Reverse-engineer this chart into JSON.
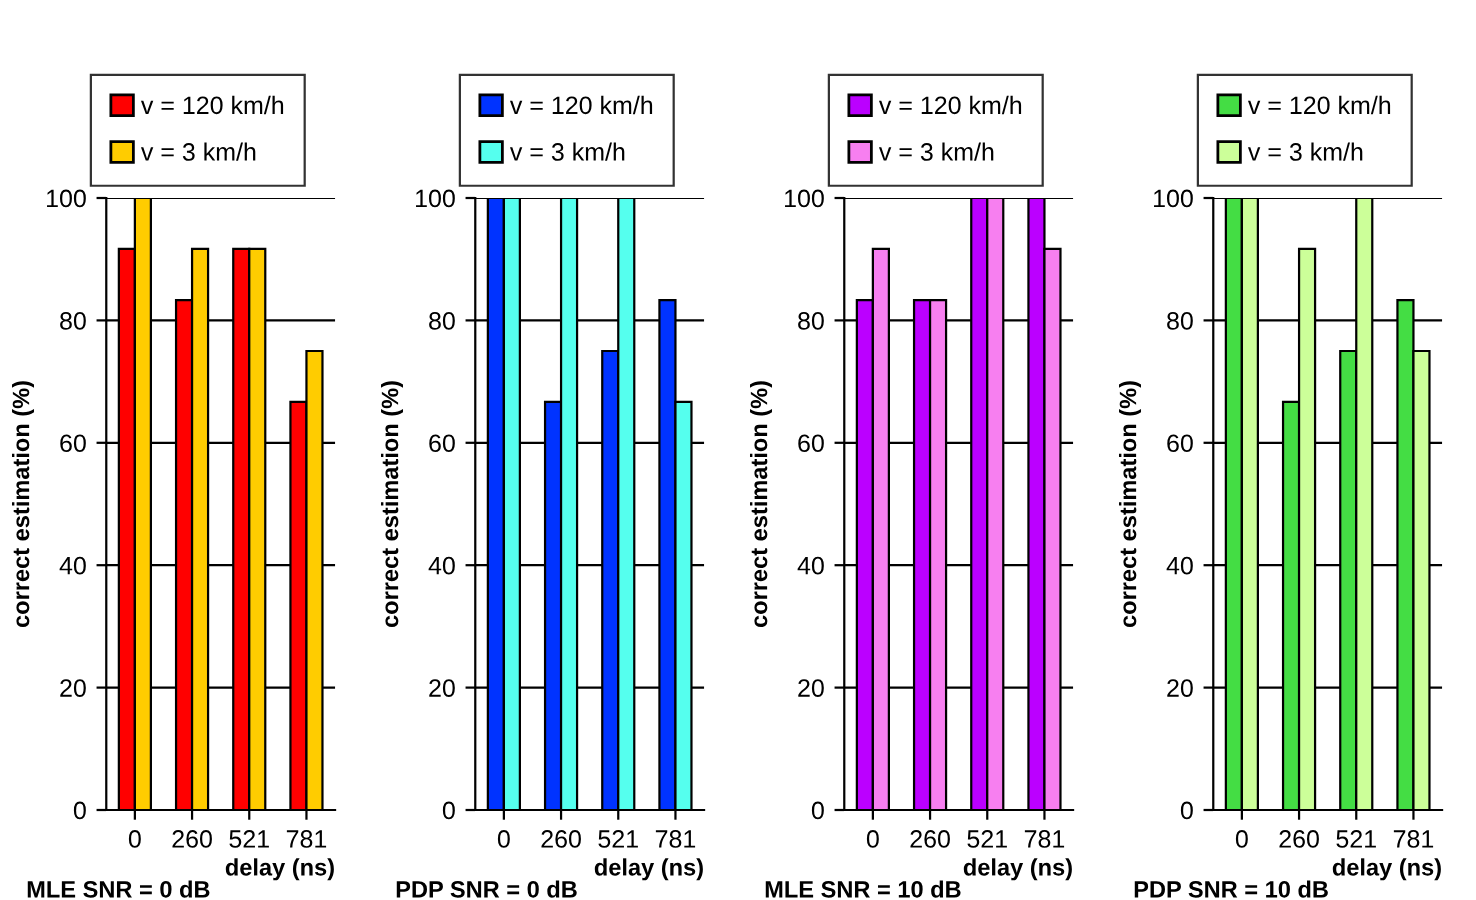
{
  "chart_data": [
    {
      "type": "bar",
      "categories": [
        "0",
        "260",
        "521",
        "781"
      ],
      "xlabel": "delay (ns)",
      "ylabel": "correct estimation (%)",
      "annotations": [
        "MLE SNR = 0 dB"
      ],
      "ylim": [
        0,
        100
      ],
      "yticks": [
        0,
        20,
        40,
        60,
        80,
        100
      ],
      "grid": "y",
      "legend": "top",
      "series": [
        {
          "name": "v = 120 km/h",
          "color": "#ff0000",
          "values": [
            91.7,
            83.3,
            91.7,
            66.7
          ]
        },
        {
          "name": "v = 3 km/h",
          "color": "#ffcc00",
          "values": [
            100,
            91.7,
            91.7,
            75
          ]
        }
      ]
    },
    {
      "type": "bar",
      "categories": [
        "0",
        "260",
        "521",
        "781"
      ],
      "xlabel": "delay (ns)",
      "ylabel": "correct estimation (%)",
      "annotations": [
        "PDP SNR = 0 dB"
      ],
      "ylim": [
        0,
        100
      ],
      "yticks": [
        0,
        20,
        40,
        60,
        80,
        100
      ],
      "grid": "y",
      "legend": "top",
      "series": [
        {
          "name": "v = 120 km/h",
          "color": "#0033ff",
          "values": [
            100,
            66.7,
            75,
            83.3
          ]
        },
        {
          "name": "v = 3 km/h",
          "color": "#55ffee",
          "values": [
            100,
            100,
            100,
            66.7
          ]
        }
      ]
    },
    {
      "type": "bar",
      "categories": [
        "0",
        "260",
        "521",
        "781"
      ],
      "xlabel": "delay (ns)",
      "ylabel": "correct estimation (%)",
      "annotations": [
        "MLE SNR = 10 dB"
      ],
      "ylim": [
        0,
        100
      ],
      "yticks": [
        0,
        20,
        40,
        60,
        80,
        100
      ],
      "grid": "y",
      "legend": "top",
      "series": [
        {
          "name": "v = 120 km/h",
          "color": "#bb00ff",
          "values": [
            83.3,
            83.3,
            100,
            100
          ]
        },
        {
          "name": "v = 3 km/h",
          "color": "#f77ff0",
          "values": [
            91.7,
            83.3,
            100,
            91.7
          ]
        }
      ]
    },
    {
      "type": "bar",
      "categories": [
        "0",
        "260",
        "521",
        "781"
      ],
      "xlabel": "delay (ns)",
      "ylabel": "correct estimation (%)",
      "annotations": [
        "PDP SNR = 10 dB"
      ],
      "ylim": [
        0,
        100
      ],
      "yticks": [
        0,
        20,
        40,
        60,
        80,
        100
      ],
      "grid": "y",
      "legend": "top",
      "series": [
        {
          "name": "v = 120 km/h",
          "color": "#44dd44",
          "values": [
            100,
            66.7,
            75,
            83.3
          ]
        },
        {
          "name": "v = 3 km/h",
          "color": "#ccff99",
          "values": [
            100,
            91.7,
            100,
            75
          ]
        }
      ]
    }
  ]
}
